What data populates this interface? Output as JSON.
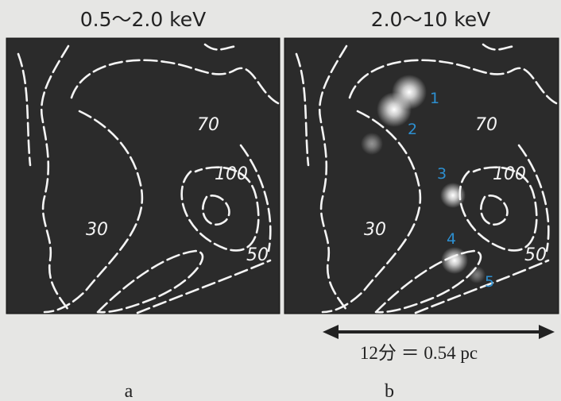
{
  "panels": [
    {
      "title": "0.5～2.0 keV",
      "letter": "a",
      "contour_labels": [
        "70",
        "100",
        "30",
        "50"
      ]
    },
    {
      "title": "2.0～10 keV",
      "letter": "b",
      "contour_labels": [
        "70",
        "100",
        "30",
        "50"
      ],
      "source_labels": [
        "1",
        "2",
        "3",
        "4",
        "5"
      ]
    }
  ],
  "scale_bar": {
    "label": "12分 ＝ 0.54 pc"
  }
}
